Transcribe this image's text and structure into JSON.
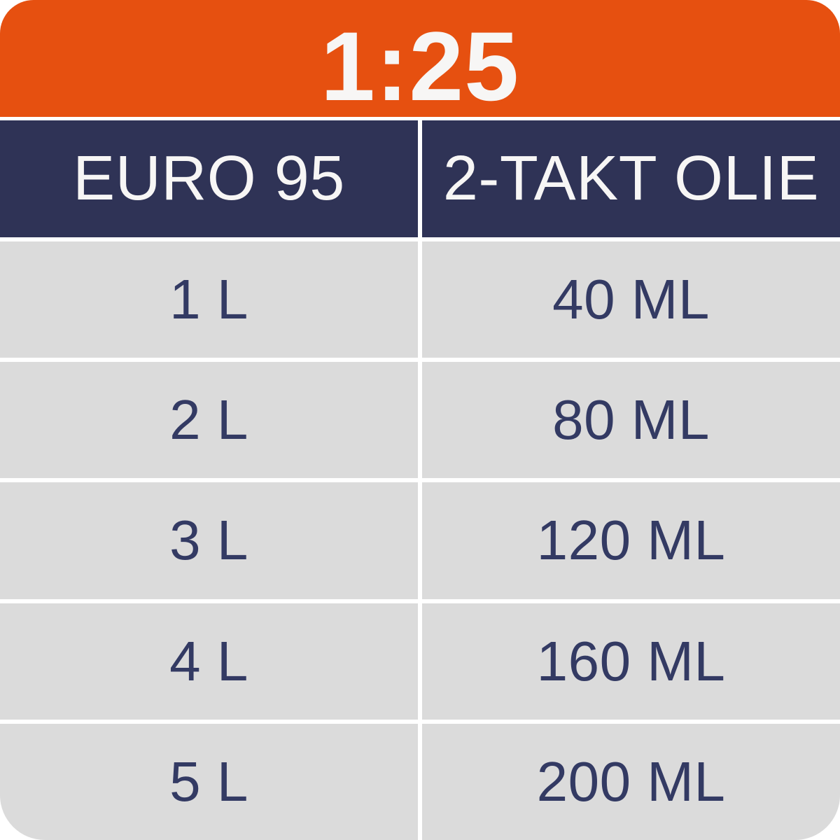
{
  "card": {
    "ratio_label": "1:25",
    "colors": {
      "orange": "#E65010",
      "navy": "#2F3356",
      "row_gray": "#DBDBDB",
      "text_navy": "#333A63",
      "header_text": "#F7F6F5",
      "gap_white": "#FFFFFF"
    },
    "columns": [
      {
        "label": "EURO 95"
      },
      {
        "label": "2-TAKT OLIE"
      }
    ],
    "rows": [
      {
        "fuel": "1 L",
        "oil": "40 ML"
      },
      {
        "fuel": "2 L",
        "oil": "80 ML"
      },
      {
        "fuel": "3 L",
        "oil": "120 ML"
      },
      {
        "fuel": "4 L",
        "oil": "160 ML"
      },
      {
        "fuel": "5 L",
        "oil": "200 ML"
      }
    ]
  },
  "chart_data": {
    "type": "table",
    "title": "1:25",
    "columns": [
      "EURO 95",
      "2-TAKT OLIE"
    ],
    "rows": [
      [
        "1 L",
        "40 ML"
      ],
      [
        "2 L",
        "80 ML"
      ],
      [
        "3 L",
        "120 ML"
      ],
      [
        "4 L",
        "160 ML"
      ],
      [
        "5 L",
        "200 ML"
      ]
    ],
    "fuel_liters": [
      1,
      2,
      3,
      4,
      5
    ],
    "oil_ml": [
      40,
      80,
      120,
      160,
      200
    ],
    "ratio": "1:25"
  }
}
